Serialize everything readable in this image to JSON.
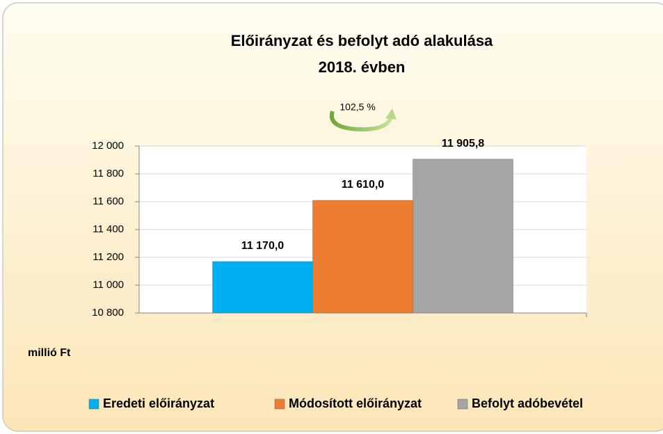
{
  "chart_data": {
    "type": "bar",
    "title": "Előirányzat és befolyt adó alakulása",
    "subtitle": "2018. évben",
    "annotation": "102,5 %",
    "y_label": "millió Ft",
    "categories": [
      null
    ],
    "series": [
      {
        "name": "Eredeti előirányzat",
        "color": "#00b0f0",
        "values": [
          11170
        ],
        "value_labels": [
          "11 170,0"
        ]
      },
      {
        "name": "Módosított előirányzat",
        "color": "#ed7d31",
        "values": [
          11610
        ],
        "value_labels": [
          "11 610,0"
        ]
      },
      {
        "name": "Befolyt adóbevétel",
        "color": "#a5a5a5",
        "values": [
          11905.8
        ],
        "value_labels": [
          "11 905,8"
        ]
      }
    ],
    "ylim": [
      10800,
      12000
    ],
    "yticks": [
      {
        "value": 10800,
        "label": "10 800"
      },
      {
        "value": 11000,
        "label": "11 000"
      },
      {
        "value": 11200,
        "label": "11 200"
      },
      {
        "value": 11400,
        "label": "11 400"
      },
      {
        "value": 11600,
        "label": "11 600"
      },
      {
        "value": 11800,
        "label": "11 800"
      },
      {
        "value": 12000,
        "label": "12 000"
      }
    ],
    "grid": true,
    "legend": "bottom"
  }
}
